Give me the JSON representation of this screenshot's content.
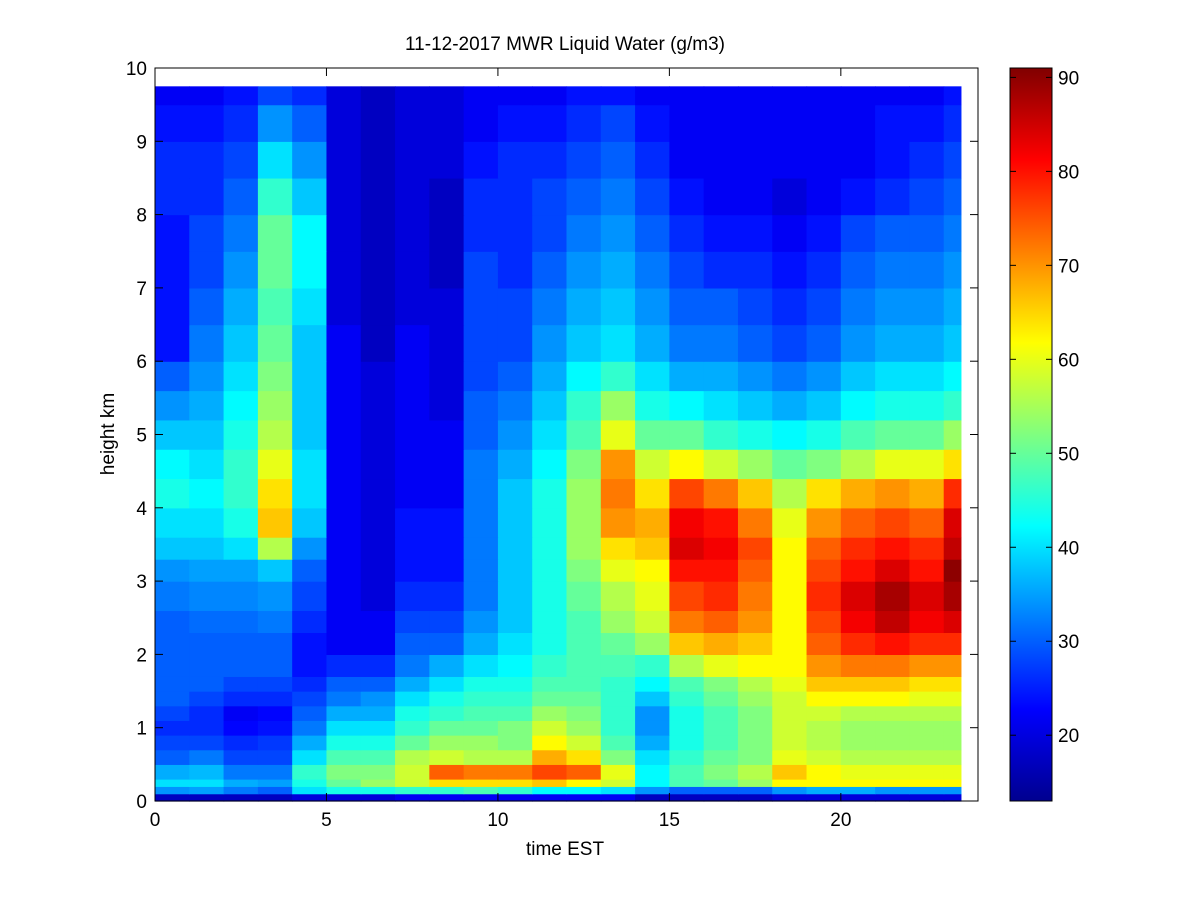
{
  "chart_data": {
    "type": "heatmap",
    "title": "11-12-2017 MWR Liquid Water (g/m3)",
    "xlabel": "time EST",
    "ylabel": "height km",
    "xlim": [
      0,
      24
    ],
    "ylim": [
      0,
      10
    ],
    "x_ticks": [
      0,
      5,
      10,
      15,
      20
    ],
    "y_ticks": [
      0,
      1,
      2,
      3,
      4,
      5,
      6,
      7,
      8,
      9,
      10
    ],
    "x_tick_labels": [
      "0",
      "5",
      "10",
      "15",
      "20"
    ],
    "y_tick_labels": [
      "0",
      "1",
      "2",
      "3",
      "4",
      "5",
      "6",
      "7",
      "8",
      "9",
      "10"
    ],
    "colormap": "jet",
    "colorbar": {
      "min": 13,
      "max": 91,
      "ticks": [
        20,
        30,
        40,
        50,
        60,
        70,
        80,
        90
      ],
      "tick_labels": [
        "20",
        "30",
        "40",
        "50",
        "60",
        "70",
        "80",
        "90"
      ]
    },
    "x": [
      0,
      1,
      2,
      3,
      4,
      5,
      6,
      7,
      8,
      9,
      10,
      11,
      12,
      13,
      14,
      15,
      16,
      17,
      18,
      19,
      20,
      21,
      22,
      23
    ],
    "data_x_extent": [
      0,
      23.5
    ],
    "data_y_extent": [
      0,
      9.75
    ],
    "y_levels": [
      0,
      0.1,
      0.2,
      0.3,
      0.5,
      0.7,
      0.9,
      1.1,
      1.3,
      1.5,
      1.7,
      2.0,
      2.3,
      2.6,
      3.0,
      3.3,
      3.6,
      4.0,
      4.4,
      4.8,
      5.2,
      5.6,
      6.0,
      6.5,
      7.0,
      7.5,
      8.0,
      8.5,
      9.0,
      9.5
    ],
    "values": [
      [
        18,
        18,
        18,
        18,
        20,
        20,
        20,
        22,
        22,
        22,
        22,
        22,
        22,
        22,
        18,
        18,
        18,
        18,
        20,
        20,
        20,
        20,
        20,
        20
      ],
      [
        34,
        35,
        32,
        30,
        40,
        44,
        44,
        46,
        46,
        48,
        46,
        42,
        42,
        40,
        34,
        30,
        30,
        30,
        34,
        36,
        36,
        34,
        34,
        34
      ],
      [
        40,
        40,
        36,
        35,
        44,
        50,
        54,
        58,
        64,
        64,
        64,
        66,
        62,
        58,
        42,
        48,
        50,
        54,
        62,
        62,
        62,
        62,
        62,
        62
      ],
      [
        36,
        37,
        32,
        32,
        46,
        52,
        52,
        58,
        74,
        72,
        72,
        76,
        74,
        60,
        42,
        48,
        52,
        56,
        66,
        62,
        60,
        60,
        60,
        60
      ],
      [
        30,
        32,
        28,
        28,
        40,
        48,
        48,
        56,
        58,
        56,
        56,
        68,
        64,
        52,
        40,
        46,
        50,
        52,
        60,
        58,
        56,
        56,
        56,
        56
      ],
      [
        28,
        28,
        26,
        27,
        36,
        44,
        44,
        50,
        54,
        54,
        52,
        62,
        58,
        48,
        36,
        44,
        48,
        52,
        58,
        56,
        54,
        54,
        54,
        54
      ],
      [
        26,
        26,
        23,
        24,
        32,
        40,
        40,
        46,
        50,
        50,
        52,
        58,
        54,
        46,
        34,
        44,
        48,
        52,
        58,
        56,
        54,
        54,
        54,
        54
      ],
      [
        28,
        26,
        22,
        23,
        30,
        36,
        36,
        44,
        46,
        48,
        48,
        54,
        52,
        46,
        34,
        44,
        48,
        52,
        58,
        58,
        56,
        56,
        56,
        56
      ],
      [
        30,
        28,
        26,
        26,
        28,
        32,
        34,
        40,
        44,
        46,
        46,
        50,
        50,
        46,
        38,
        46,
        50,
        54,
        58,
        62,
        62,
        62,
        60,
        60
      ],
      [
        30,
        30,
        28,
        28,
        26,
        30,
        30,
        36,
        40,
        44,
        44,
        48,
        48,
        46,
        42,
        48,
        52,
        56,
        60,
        66,
        66,
        66,
        64,
        64
      ],
      [
        30,
        30,
        30,
        30,
        24,
        26,
        26,
        32,
        36,
        40,
        42,
        46,
        48,
        48,
        46,
        56,
        60,
        62,
        62,
        70,
        72,
        72,
        70,
        70
      ],
      [
        30,
        30,
        30,
        30,
        24,
        22,
        22,
        30,
        30,
        36,
        40,
        44,
        48,
        50,
        54,
        66,
        68,
        66,
        62,
        74,
        78,
        80,
        78,
        78
      ],
      [
        30,
        31,
        31,
        32,
        26,
        22,
        22,
        28,
        28,
        34,
        38,
        44,
        48,
        54,
        58,
        72,
        74,
        70,
        62,
        76,
        82,
        86,
        82,
        84
      ],
      [
        32,
        33,
        33,
        34,
        28,
        22,
        20,
        26,
        26,
        32,
        38,
        44,
        50,
        56,
        60,
        76,
        78,
        72,
        62,
        78,
        84,
        88,
        84,
        88
      ],
      [
        34,
        35,
        35,
        38,
        30,
        22,
        20,
        24,
        24,
        32,
        38,
        44,
        52,
        60,
        62,
        80,
        80,
        74,
        62,
        76,
        80,
        84,
        80,
        90
      ],
      [
        38,
        38,
        40,
        56,
        34,
        22,
        20,
        24,
        24,
        32,
        38,
        44,
        54,
        64,
        66,
        84,
        82,
        76,
        62,
        74,
        78,
        80,
        78,
        86
      ],
      [
        40,
        40,
        44,
        66,
        38,
        22,
        20,
        24,
        24,
        32,
        38,
        44,
        54,
        70,
        68,
        82,
        80,
        72,
        60,
        70,
        74,
        76,
        74,
        84
      ],
      [
        44,
        42,
        46,
        64,
        40,
        22,
        20,
        22,
        22,
        32,
        38,
        44,
        54,
        72,
        64,
        76,
        72,
        66,
        56,
        64,
        68,
        70,
        68,
        78
      ],
      [
        42,
        40,
        46,
        60,
        40,
        22,
        20,
        22,
        22,
        32,
        36,
        42,
        52,
        70,
        58,
        62,
        58,
        54,
        50,
        52,
        56,
        60,
        60,
        64
      ],
      [
        38,
        38,
        44,
        56,
        38,
        22,
        20,
        22,
        22,
        30,
        34,
        40,
        48,
        60,
        50,
        50,
        46,
        44,
        42,
        44,
        48,
        50,
        50,
        54
      ],
      [
        34,
        36,
        42,
        54,
        38,
        22,
        20,
        22,
        20,
        30,
        32,
        38,
        46,
        54,
        44,
        42,
        40,
        38,
        36,
        38,
        42,
        44,
        44,
        46
      ],
      [
        30,
        34,
        40,
        52,
        38,
        22,
        20,
        22,
        20,
        28,
        30,
        36,
        42,
        46,
        40,
        36,
        36,
        34,
        32,
        34,
        38,
        40,
        40,
        42
      ],
      [
        24,
        32,
        38,
        50,
        38,
        22,
        18,
        22,
        20,
        28,
        28,
        34,
        38,
        40,
        36,
        32,
        32,
        30,
        28,
        30,
        34,
        36,
        36,
        38
      ],
      [
        24,
        30,
        36,
        48,
        40,
        20,
        18,
        20,
        20,
        28,
        28,
        32,
        36,
        38,
        34,
        30,
        30,
        28,
        26,
        28,
        32,
        34,
        34,
        36
      ],
      [
        24,
        28,
        34,
        50,
        42,
        20,
        18,
        20,
        18,
        28,
        26,
        30,
        34,
        36,
        32,
        28,
        26,
        26,
        24,
        26,
        30,
        32,
        32,
        34
      ],
      [
        24,
        28,
        32,
        50,
        42,
        20,
        18,
        20,
        18,
        26,
        26,
        28,
        32,
        34,
        30,
        26,
        24,
        24,
        22,
        24,
        28,
        30,
        30,
        32
      ],
      [
        26,
        26,
        30,
        46,
        38,
        20,
        18,
        20,
        18,
        26,
        26,
        28,
        30,
        32,
        28,
        24,
        22,
        22,
        20,
        22,
        24,
        26,
        28,
        30
      ],
      [
        26,
        26,
        28,
        40,
        34,
        20,
        18,
        20,
        20,
        24,
        26,
        26,
        28,
        30,
        26,
        22,
        22,
        22,
        22,
        22,
        22,
        24,
        26,
        28
      ],
      [
        24,
        24,
        26,
        34,
        30,
        20,
        18,
        20,
        20,
        22,
        24,
        24,
        26,
        28,
        24,
        22,
        22,
        22,
        22,
        22,
        22,
        24,
        24,
        26
      ],
      [
        22,
        22,
        24,
        28,
        26,
        20,
        18,
        20,
        20,
        22,
        22,
        22,
        24,
        24,
        22,
        22,
        22,
        22,
        22,
        22,
        22,
        22,
        22,
        24
      ]
    ]
  }
}
